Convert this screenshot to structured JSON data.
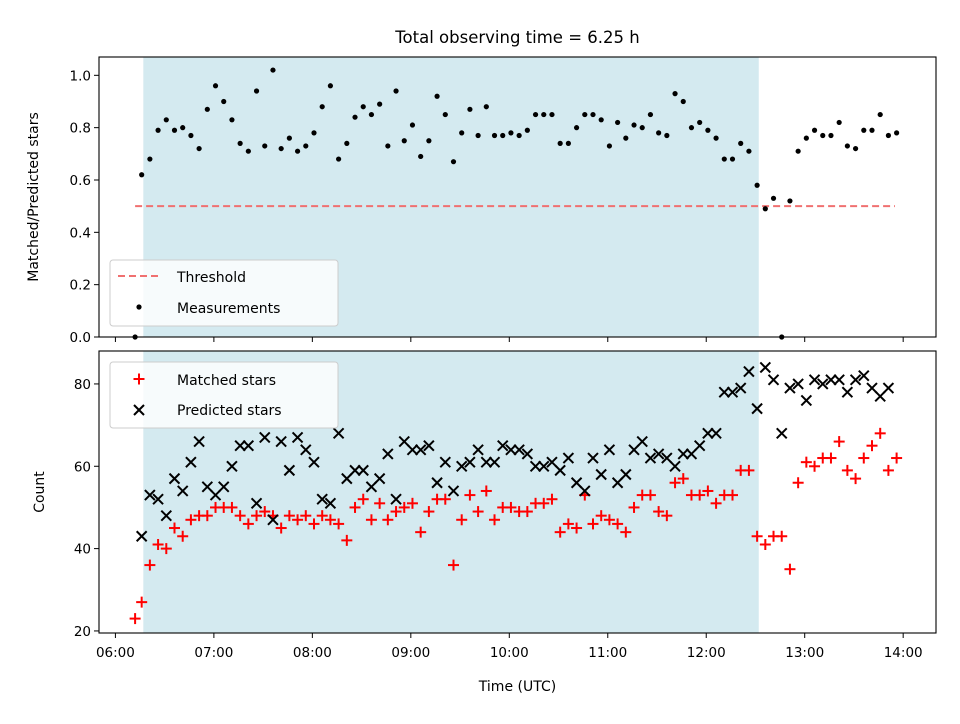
{
  "chart_data": [
    {
      "type": "scatter",
      "title": "Total observing time = 6.25 h",
      "ylabel": "Matched/Predicted stars",
      "xlabel": "",
      "ylim": [
        0,
        1.07
      ],
      "xlim": [
        "05:50",
        "14:20"
      ],
      "yticks": [
        "0.0",
        "0.2",
        "0.4",
        "0.6",
        "0.8",
        "1.0"
      ],
      "shaded_span": [
        "06:17",
        "12:32"
      ],
      "shade_color": "#d4eaf0",
      "threshold": {
        "name": "Threshold",
        "value": 0.5,
        "x_range": [
          "06:12",
          "13:55"
        ],
        "color": "#f07070"
      },
      "series": [
        {
          "name": "Measurements",
          "color": "#000000",
          "x": [
            "06:12",
            "06:16",
            "06:21",
            "06:26",
            "06:31",
            "06:36",
            "06:41",
            "06:46",
            "06:51",
            "06:56",
            "07:01",
            "07:06",
            "07:11",
            "07:16",
            "07:21",
            "07:26",
            "07:31",
            "07:36",
            "07:41",
            "07:46",
            "07:51",
            "07:56",
            "08:01",
            "08:06",
            "08:11",
            "08:16",
            "08:21",
            "08:26",
            "08:31",
            "08:36",
            "08:41",
            "08:46",
            "08:51",
            "08:56",
            "09:01",
            "09:06",
            "09:11",
            "09:16",
            "09:21",
            "09:26",
            "09:31",
            "09:36",
            "09:41",
            "09:46",
            "09:51",
            "09:56",
            "10:01",
            "10:06",
            "10:11",
            "10:16",
            "10:21",
            "10:26",
            "10:31",
            "10:36",
            "10:41",
            "10:46",
            "10:51",
            "10:56",
            "11:01",
            "11:06",
            "11:11",
            "11:16",
            "11:21",
            "11:26",
            "11:31",
            "11:36",
            "11:41",
            "11:46",
            "11:51",
            "11:56",
            "12:01",
            "12:06",
            "12:11",
            "12:16",
            "12:21",
            "12:26",
            "12:31",
            "12:36",
            "12:41",
            "12:46",
            "12:51",
            "12:56",
            "13:01",
            "13:06",
            "13:11",
            "13:16",
            "13:21",
            "13:26",
            "13:31",
            "13:36",
            "13:41",
            "13:46",
            "13:51",
            "13:56"
          ],
          "y": [
            0.0,
            0.62,
            0.68,
            0.79,
            0.83,
            0.79,
            0.8,
            0.77,
            0.72,
            0.87,
            0.96,
            0.9,
            0.83,
            0.74,
            0.71,
            0.94,
            0.73,
            1.02,
            0.72,
            0.76,
            0.71,
            0.73,
            0.78,
            0.88,
            0.96,
            0.68,
            0.74,
            0.84,
            0.88,
            0.85,
            0.89,
            0.73,
            0.94,
            0.75,
            0.81,
            0.69,
            0.75,
            0.92,
            0.85,
            0.67,
            0.78,
            0.87,
            0.77,
            0.88,
            0.77,
            0.77,
            0.78,
            0.77,
            0.79,
            0.85,
            0.85,
            0.85,
            0.74,
            0.74,
            0.8,
            0.85,
            0.85,
            0.83,
            0.73,
            0.82,
            0.76,
            0.81,
            0.8,
            0.85,
            0.78,
            0.77,
            0.93,
            0.9,
            0.8,
            0.82,
            0.79,
            0.76,
            0.68,
            0.68,
            0.74,
            0.71,
            0.58,
            0.49,
            0.53,
            0.0,
            0.52,
            0.71,
            0.76,
            0.79,
            0.77,
            0.77,
            0.82,
            0.73,
            0.72,
            0.79,
            0.79,
            0.85,
            0.77,
            0.78
          ]
        }
      ],
      "legend": {
        "position": "lower-left",
        "entries": [
          "Threshold",
          "Measurements"
        ]
      }
    },
    {
      "type": "scatter",
      "xlabel": "Time (UTC)",
      "ylabel": "Count",
      "ylim": [
        19.5,
        88
      ],
      "xlim": [
        "05:50",
        "14:20"
      ],
      "yticks": [
        "20",
        "40",
        "60",
        "80"
      ],
      "xticks": [
        "06:00",
        "07:00",
        "08:00",
        "09:00",
        "10:00",
        "11:00",
        "12:00",
        "13:00",
        "14:00"
      ],
      "shaded_span": [
        "06:17",
        "12:32"
      ],
      "shade_color": "#d4eaf0",
      "series": [
        {
          "name": "Matched stars",
          "color": "#ff0000",
          "marker": "+",
          "x": [
            "06:12",
            "06:16",
            "06:21",
            "06:26",
            "06:31",
            "06:36",
            "06:41",
            "06:46",
            "06:51",
            "06:56",
            "07:01",
            "07:06",
            "07:11",
            "07:16",
            "07:21",
            "07:26",
            "07:31",
            "07:36",
            "07:41",
            "07:46",
            "07:51",
            "07:56",
            "08:01",
            "08:06",
            "08:11",
            "08:16",
            "08:21",
            "08:26",
            "08:31",
            "08:36",
            "08:41",
            "08:46",
            "08:51",
            "08:56",
            "09:01",
            "09:06",
            "09:11",
            "09:16",
            "09:21",
            "09:26",
            "09:31",
            "09:36",
            "09:41",
            "09:46",
            "09:51",
            "09:56",
            "10:01",
            "10:06",
            "10:11",
            "10:16",
            "10:21",
            "10:26",
            "10:31",
            "10:36",
            "10:41",
            "10:46",
            "10:51",
            "10:56",
            "11:01",
            "11:06",
            "11:11",
            "11:16",
            "11:21",
            "11:26",
            "11:31",
            "11:36",
            "11:41",
            "11:46",
            "11:51",
            "11:56",
            "12:01",
            "12:06",
            "12:11",
            "12:16",
            "12:21",
            "12:26",
            "12:31",
            "12:36",
            "12:41",
            "12:46",
            "12:51",
            "12:56",
            "13:01",
            "13:06",
            "13:11",
            "13:16",
            "13:21",
            "13:26",
            "13:31",
            "13:36",
            "13:41",
            "13:46",
            "13:51",
            "13:56"
          ],
          "y": [
            23,
            27,
            36,
            41,
            40,
            45,
            43,
            47,
            48,
            48,
            50,
            50,
            50,
            48,
            46,
            48,
            49,
            48,
            45,
            48,
            47,
            48,
            46,
            48,
            47,
            46,
            42,
            50,
            52,
            47,
            51,
            47,
            49,
            50,
            51,
            44,
            49,
            52,
            52,
            36,
            47,
            53,
            49,
            54,
            47,
            50,
            50,
            49,
            49,
            51,
            51,
            52,
            44,
            46,
            45,
            53,
            46,
            48,
            47,
            46,
            44,
            50,
            53,
            53,
            49,
            48,
            56,
            57,
            53,
            53,
            54,
            51,
            53,
            53,
            59,
            59,
            43,
            41,
            43,
            43,
            35,
            56,
            61,
            60,
            62,
            62,
            66,
            59,
            57,
            62,
            65,
            68,
            59,
            62
          ]
        },
        {
          "name": "Predicted stars",
          "color": "#000000",
          "marker": "x",
          "x": [
            "06:12",
            "06:16",
            "06:21",
            "06:26",
            "06:31",
            "06:36",
            "06:41",
            "06:46",
            "06:51",
            "06:56",
            "07:01",
            "07:06",
            "07:11",
            "07:16",
            "07:21",
            "07:26",
            "07:31",
            "07:36",
            "07:41",
            "07:46",
            "07:51",
            "07:56",
            "08:01",
            "08:06",
            "08:11",
            "08:16",
            "08:21",
            "08:26",
            "08:31",
            "08:36",
            "08:41",
            "08:46",
            "08:51",
            "08:56",
            "09:01",
            "09:06",
            "09:11",
            "09:16",
            "09:21",
            "09:26",
            "09:31",
            "09:36",
            "09:41",
            "09:46",
            "09:51",
            "09:56",
            "10:01",
            "10:06",
            "10:11",
            "10:16",
            "10:21",
            "10:26",
            "10:31",
            "10:36",
            "10:41",
            "10:46",
            "10:51",
            "10:56",
            "11:01",
            "11:06",
            "11:11",
            "11:16",
            "11:21",
            "11:26",
            "11:31",
            "11:36",
            "11:41",
            "11:46",
            "11:51",
            "11:56",
            "12:01",
            "12:06",
            "12:11",
            "12:16",
            "12:21",
            "12:26",
            "12:31",
            "12:36",
            "12:41",
            "12:46",
            "12:51",
            "12:56",
            "13:01",
            "13:06",
            "13:11",
            "13:16",
            "13:21",
            "13:26",
            "13:31",
            "13:36",
            "13:41",
            "13:46",
            "13:51",
            "13:56"
          ],
          "y": [
            null,
            43,
            53,
            52,
            48,
            57,
            54,
            61,
            66,
            55,
            53,
            55,
            60,
            65,
            65,
            51,
            67,
            47,
            66,
            59,
            67,
            64,
            61,
            52,
            51,
            68,
            57,
            59,
            59,
            55,
            57,
            63,
            52,
            66,
            64,
            64,
            65,
            56,
            61,
            54,
            60,
            61,
            64,
            61,
            61,
            65,
            64,
            64,
            63,
            60,
            60,
            61,
            59,
            62,
            56,
            54,
            62,
            58,
            64,
            56,
            58,
            64,
            66,
            62,
            63,
            62,
            60,
            63,
            63,
            65,
            68,
            68,
            78,
            78,
            79,
            83,
            74,
            84,
            81,
            68,
            79,
            80,
            76,
            81,
            80,
            81,
            81,
            78,
            81,
            82,
            79,
            77,
            79,
            null
          ]
        }
      ],
      "legend": {
        "position": "upper-left",
        "entries": [
          "Matched stars",
          "Predicted stars"
        ]
      }
    }
  ]
}
